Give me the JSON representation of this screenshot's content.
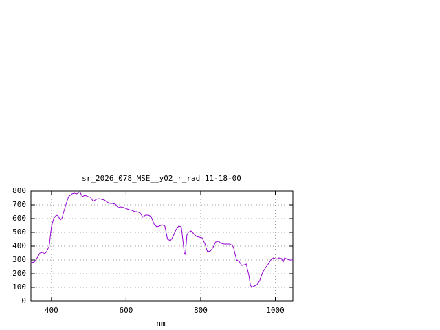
{
  "chart_data": {
    "type": "line",
    "title": "sr_2026_078_MSE__y02_r_rad 11-18-00",
    "xlabel": "nm",
    "x": [
      345,
      354,
      363,
      369,
      376,
      382,
      387,
      394,
      400,
      406,
      413,
      418,
      424,
      428,
      433,
      441,
      446,
      455,
      461,
      468,
      476,
      483,
      490,
      498,
      505,
      512,
      520,
      527,
      535,
      542,
      549,
      557,
      564,
      571,
      579,
      586,
      594,
      601,
      608,
      616,
      623,
      630,
      638,
      645,
      652,
      660,
      667,
      675,
      682,
      689,
      697,
      704,
      711,
      719,
      726,
      734,
      741,
      748,
      752,
      756,
      759,
      763,
      767,
      774,
      781,
      789,
      796,
      804,
      811,
      818,
      826,
      833,
      840,
      848,
      855,
      863,
      870,
      877,
      885,
      888,
      896,
      903,
      910,
      918,
      922,
      929,
      933,
      936,
      944,
      951,
      958,
      966,
      973,
      981,
      988,
      995,
      1003,
      1010,
      1017,
      1021,
      1025,
      1032,
      1039,
      1047
    ],
    "series": [
      {
        "color": "#9400d3",
        "values": [
          280,
          285,
          320,
          350,
          355,
          345,
          360,
          400,
          540,
          600,
          625,
          620,
          590,
          600,
          650,
          720,
          760,
          780,
          785,
          780,
          795,
          760,
          770,
          760,
          755,
          725,
          740,
          745,
          740,
          735,
          720,
          710,
          710,
          705,
          680,
          685,
          680,
          672,
          665,
          660,
          650,
          650,
          640,
          610,
          625,
          625,
          615,
          560,
          540,
          545,
          555,
          545,
          450,
          440,
          470,
          520,
          545,
          540,
          450,
          350,
          340,
          480,
          500,
          510,
          490,
          470,
          465,
          460,
          420,
          360,
          365,
          390,
          430,
          435,
          420,
          415,
          415,
          415,
          405,
          390,
          300,
          290,
          260,
          265,
          270,
          190,
          120,
          100,
          110,
          120,
          150,
          210,
          240,
          270,
          300,
          315,
          305,
          315,
          310,
          285,
          315,
          305,
          300,
          300
        ]
      }
    ],
    "xlim": [
      345,
      1047
    ],
    "ylim": [
      0,
      800
    ],
    "xticks": [
      400,
      600,
      800,
      1000
    ],
    "yticks": [
      0,
      100,
      200,
      300,
      400,
      500,
      600,
      700,
      800
    ],
    "grid": true
  }
}
